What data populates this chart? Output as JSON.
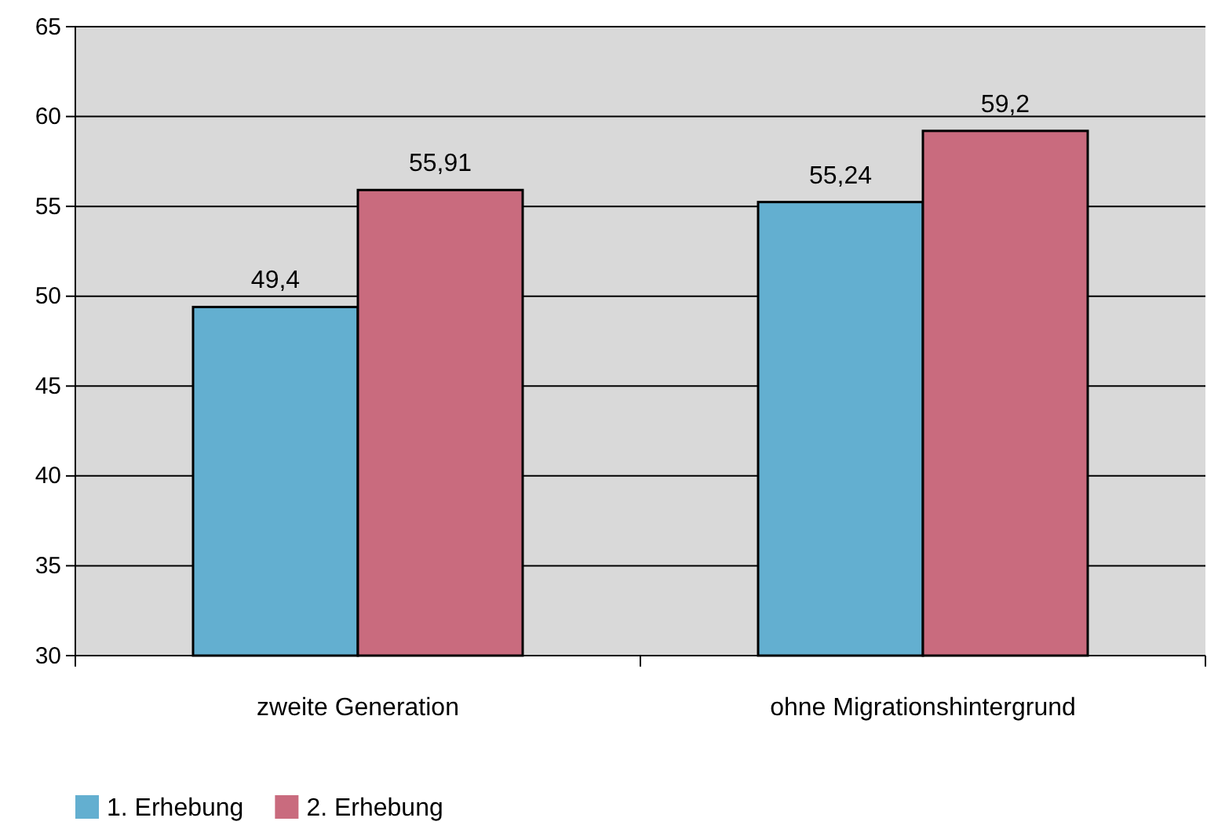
{
  "chart_data": {
    "type": "bar",
    "categories": [
      "zweite Generation",
      "ohne Migrationshintergrund"
    ],
    "series": [
      {
        "name": "1. Erhebung",
        "color": "#63afd0",
        "values": [
          49.4,
          55.24
        ],
        "value_labels": [
          "49,4",
          "55,24"
        ]
      },
      {
        "name": "2. Erhebung",
        "color": "#c96b7e",
        "values": [
          55.91,
          59.2
        ],
        "value_labels": [
          "55,91",
          "59,2"
        ]
      }
    ],
    "ylim": [
      30,
      65
    ],
    "yticks": [
      30,
      35,
      40,
      45,
      50,
      55,
      60,
      65
    ],
    "grid": "y",
    "legend": "bottom left"
  }
}
